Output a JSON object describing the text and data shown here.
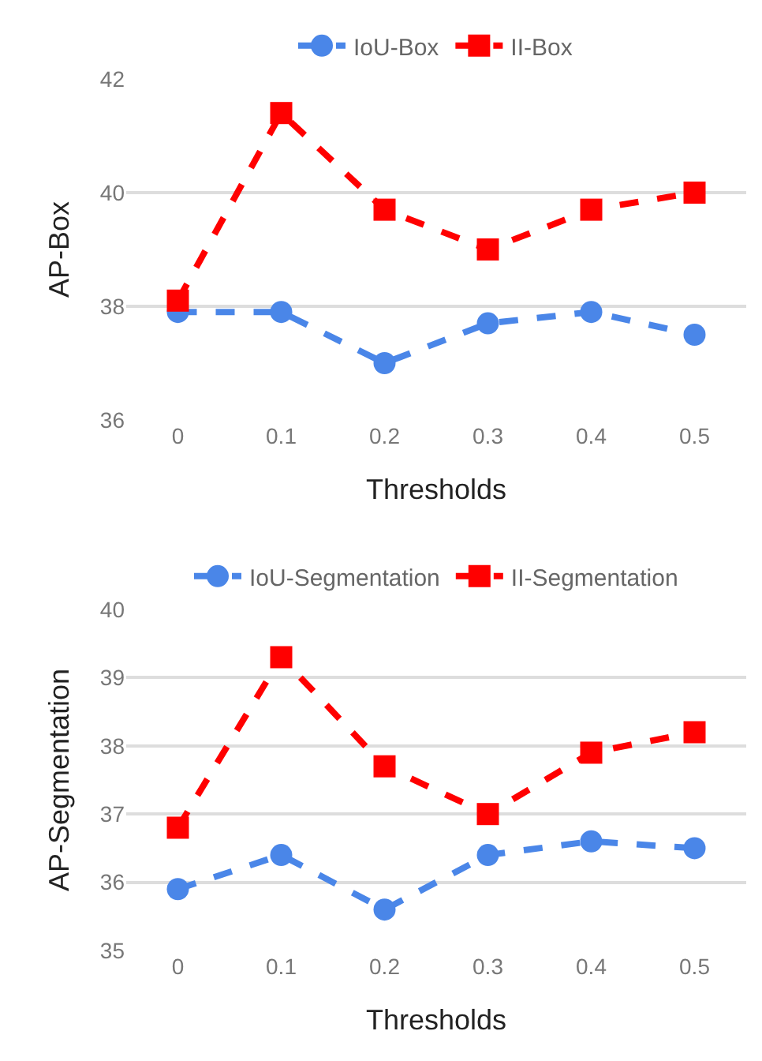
{
  "chart_data": [
    {
      "type": "line",
      "xlabel": "Thresholds",
      "ylabel": "AP-Box",
      "categories": [
        "0",
        "0.1",
        "0.2",
        "0.3",
        "0.4",
        "0.5"
      ],
      "ylim": [
        36,
        42
      ],
      "yticks": [
        36,
        38,
        40,
        42
      ],
      "grid": "y",
      "legend": "top",
      "line_style": "dashed",
      "series": [
        {
          "name": "IoU-Box",
          "color": "#4a86e8",
          "marker": "circle",
          "values": [
            37.9,
            37.9,
            37.0,
            37.7,
            37.9,
            37.5
          ]
        },
        {
          "name": "II-Box",
          "color": "#ff0000",
          "marker": "square",
          "values": [
            38.1,
            41.4,
            39.7,
            39.0,
            39.7,
            40.0
          ]
        }
      ]
    },
    {
      "type": "line",
      "xlabel": "Thresholds",
      "ylabel": "AP-Segmentation",
      "categories": [
        "0",
        "0.1",
        "0.2",
        "0.3",
        "0.4",
        "0.5"
      ],
      "ylim": [
        35,
        40
      ],
      "yticks": [
        35,
        36,
        37,
        38,
        39,
        40
      ],
      "grid": "y",
      "legend": "top",
      "line_style": "dashed",
      "series": [
        {
          "name": "IoU-Segmentation",
          "color": "#4a86e8",
          "marker": "circle",
          "values": [
            35.9,
            36.4,
            35.6,
            36.4,
            36.6,
            36.5
          ]
        },
        {
          "name": "II-Segmentation",
          "color": "#ff0000",
          "marker": "square",
          "values": [
            36.8,
            39.3,
            37.7,
            37.0,
            37.9,
            38.2
          ]
        }
      ]
    }
  ]
}
